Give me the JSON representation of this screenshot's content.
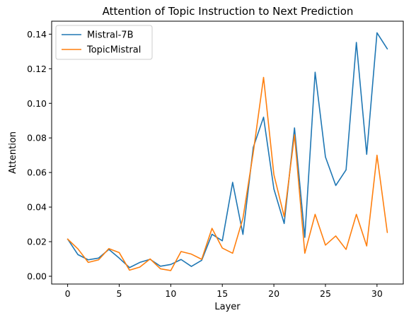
{
  "chart_data": {
    "type": "line",
    "title": "Attention of Topic Instruction to Next Prediction",
    "xlabel": "Layer",
    "ylabel": "Attention",
    "xlim": [
      -1.55,
      32.55
    ],
    "ylim": [
      -0.0045,
      0.1475
    ],
    "x_ticks": [
      0,
      5,
      10,
      15,
      20,
      25,
      30
    ],
    "y_ticks": [
      0.0,
      0.02,
      0.04,
      0.06,
      0.08,
      0.1,
      0.12,
      0.14
    ],
    "y_tick_labels": [
      "0.00",
      "0.02",
      "0.04",
      "0.06",
      "0.08",
      "0.10",
      "0.12",
      "0.14"
    ],
    "grid": false,
    "legend_position": "upper-left",
    "x": [
      0,
      1,
      2,
      3,
      4,
      5,
      6,
      7,
      8,
      9,
      10,
      11,
      12,
      13,
      14,
      15,
      16,
      17,
      18,
      19,
      20,
      21,
      22,
      23,
      24,
      25,
      26,
      27,
      28,
      29,
      30,
      31
    ],
    "series": [
      {
        "name": "Mistral-7B",
        "color": "#1f77b4",
        "values": [
          0.0215,
          0.0125,
          0.0095,
          0.0105,
          0.0155,
          0.0105,
          0.005,
          0.008,
          0.0098,
          0.0058,
          0.0068,
          0.0097,
          0.0057,
          0.0092,
          0.0243,
          0.0205,
          0.0543,
          0.0242,
          0.0745,
          0.092,
          0.0505,
          0.0305,
          0.0858,
          0.0225,
          0.118,
          0.069,
          0.0525,
          0.0615,
          0.1352,
          0.0705,
          0.1408,
          0.1315
        ]
      },
      {
        "name": "TopicMistral",
        "color": "#ff7f0e",
        "values": [
          0.0215,
          0.0158,
          0.008,
          0.0095,
          0.016,
          0.0137,
          0.0035,
          0.0053,
          0.01,
          0.0043,
          0.0033,
          0.0143,
          0.0128,
          0.0098,
          0.0277,
          0.0163,
          0.0133,
          0.0335,
          0.0715,
          0.115,
          0.0588,
          0.0345,
          0.0818,
          0.0133,
          0.0358,
          0.018,
          0.0233,
          0.0155,
          0.0358,
          0.0175,
          0.07,
          0.0253
        ]
      }
    ]
  }
}
